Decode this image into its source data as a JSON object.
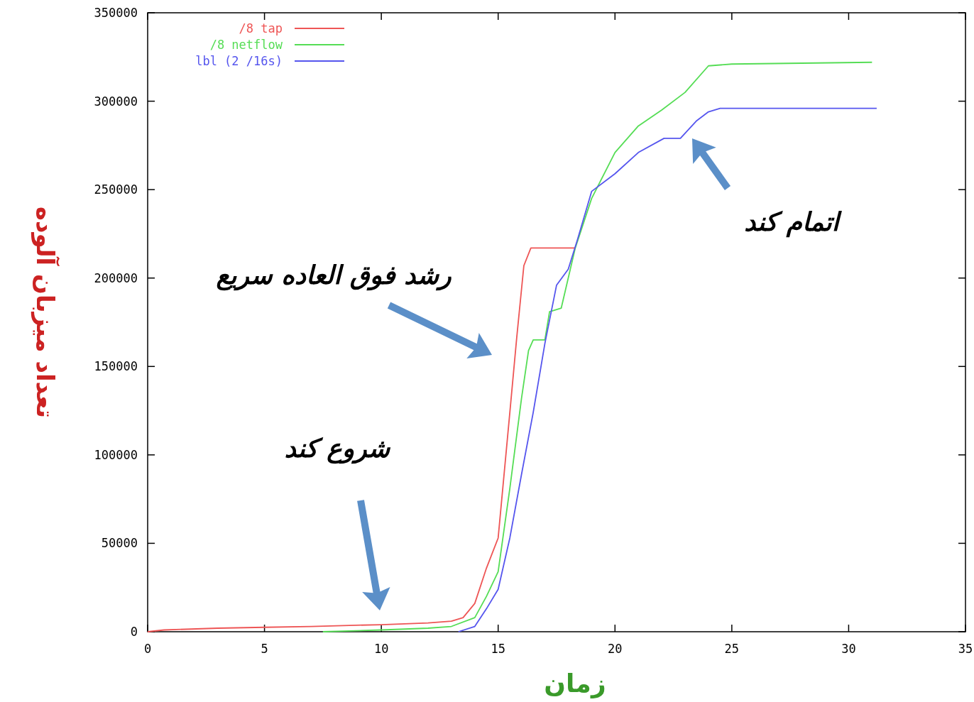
{
  "chart_data": {
    "type": "line",
    "xlabel": "زمان",
    "ylabel": "تعداد میزبان آلوده",
    "xlim": [
      0,
      35
    ],
    "ylim": [
      0,
      350000
    ],
    "xticks": [
      0,
      5,
      10,
      15,
      20,
      25,
      30,
      35
    ],
    "yticks": [
      0,
      50000,
      100000,
      150000,
      200000,
      250000,
      300000,
      350000
    ],
    "legend": "top left",
    "grid": false,
    "marker": "none",
    "line_style": "solid",
    "series": [
      {
        "name": "/8 tap",
        "color": "#ee5555",
        "x": [
          0,
          0.7,
          3,
          5,
          7,
          10,
          12,
          13,
          13.5,
          14,
          14.5,
          15,
          15.5,
          15.8,
          16.1,
          16.4,
          18.3
        ],
        "values": [
          0,
          1000,
          2000,
          2500,
          3000,
          4000,
          5000,
          6000,
          8000,
          16000,
          36000,
          53000,
          124000,
          167000,
          207000,
          217000,
          217000
        ]
      },
      {
        "name": "/8 netflow",
        "color": "#55dd55",
        "x": [
          7.5,
          10,
          12,
          13,
          14,
          14.5,
          15,
          15.5,
          16,
          16.3,
          16.5,
          17,
          17.2,
          17.7,
          18.3,
          19,
          20,
          21,
          22,
          23,
          24,
          25,
          31
        ],
        "values": [
          0,
          1000,
          2000,
          3000,
          8000,
          20000,
          34000,
          81000,
          132000,
          159000,
          165000,
          165000,
          181000,
          183000,
          217000,
          245000,
          271000,
          286000,
          295000,
          305000,
          320000,
          321000,
          322000
        ]
      },
      {
        "name": "lbl (2 /16s)",
        "color": "#5555ee",
        "x": [
          13.3,
          14,
          14.5,
          15,
          15.5,
          16,
          16.5,
          17,
          17.5,
          18,
          18.4,
          19,
          20,
          21,
          22.1,
          22.8,
          23.5,
          24,
          24.5,
          31.2
        ],
        "values": [
          0,
          3000,
          13000,
          24000,
          53000,
          89000,
          124000,
          163000,
          196000,
          205000,
          222000,
          249000,
          259000,
          271000,
          279000,
          279000,
          289000,
          294000,
          296000,
          296000
        ]
      }
    ],
    "annotations": [
      "رشد فوق العاده سریع",
      "شروع کند",
      "اتمام کند"
    ]
  }
}
